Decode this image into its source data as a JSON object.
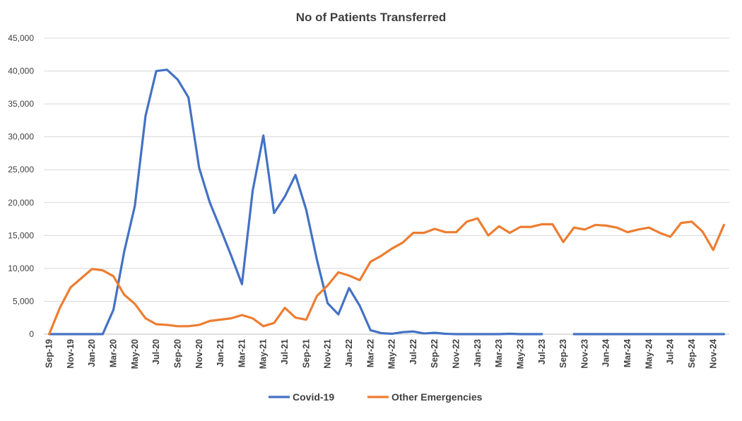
{
  "chart_data": {
    "type": "line",
    "title": "No of Patients Transferred",
    "xlabel": "",
    "ylabel": "",
    "ylim": [
      0,
      45000
    ],
    "y_ticks": [
      0,
      5000,
      10000,
      15000,
      20000,
      25000,
      30000,
      35000,
      40000,
      45000
    ],
    "y_tick_labels": [
      "0",
      "5,000",
      "10,000",
      "15,000",
      "20,000",
      "25,000",
      "30,000",
      "35,000",
      "40,000",
      "45,000"
    ],
    "categories": [
      "Sep-19",
      "Oct-19",
      "Nov-19",
      "Dec-19",
      "Jan-20",
      "Feb-20",
      "Mar-20",
      "Apr-20",
      "May-20",
      "Jun-20",
      "Jul-20",
      "Aug-20",
      "Sep-20",
      "Oct-20",
      "Nov-20",
      "Dec-20",
      "Jan-21",
      "Feb-21",
      "Mar-21",
      "Apr-21",
      "May-21",
      "Jun-21",
      "Jul-21",
      "Aug-21",
      "Sep-21",
      "Oct-21",
      "Nov-21",
      "Dec-21",
      "Jan-22",
      "Feb-22",
      "Mar-22",
      "Apr-22",
      "May-22",
      "Jun-22",
      "Jul-22",
      "Aug-22",
      "Sep-22",
      "Oct-22",
      "Nov-22",
      "Dec-22",
      "Jan-23",
      "Feb-23",
      "Mar-23",
      "Apr-23",
      "May-23",
      "Jun-23",
      "Jul-23",
      "Aug-23",
      "Sep-23",
      "Oct-23",
      "Nov-23",
      "Dec-23",
      "Jan-24",
      "Feb-24",
      "Mar-24",
      "Apr-24",
      "May-24",
      "Jun-24",
      "Jul-24",
      "Aug-24",
      "Sep-24",
      "Oct-24",
      "Nov-24",
      "Dec-24"
    ],
    "x_tick_labels": [
      "Sep-19",
      "Nov-19",
      "Jan-20",
      "Mar-20",
      "May-20",
      "Jul-20",
      "Sep-20",
      "Nov-20",
      "Jan-21",
      "Mar-21",
      "May-21",
      "Jul-21",
      "Sep-21",
      "Nov-21",
      "Jan-22",
      "Mar-22",
      "May-22",
      "Jul-22",
      "Sep-22",
      "Nov-22",
      "Jan-23",
      "Mar-23",
      "May-23",
      "Jul-23",
      "Sep-23",
      "Nov-23",
      "Jan-24",
      "Mar-24",
      "May-24",
      "Jul-24",
      "Sep-24",
      "Nov-24"
    ],
    "grid": "horizontal",
    "legend_position": "bottom",
    "series": [
      {
        "name": "Covid-19",
        "color": "#4472c4",
        "values": [
          0,
          0,
          0,
          0,
          0,
          0,
          3700,
          12500,
          19500,
          33200,
          40000,
          40200,
          38700,
          36000,
          25300,
          20000,
          16000,
          11900,
          7600,
          21800,
          30200,
          18400,
          20900,
          24200,
          18900,
          11300,
          4700,
          3000,
          7000,
          4300,
          600,
          150,
          50,
          300,
          400,
          100,
          200,
          50,
          0,
          0,
          0,
          0,
          0,
          50,
          0,
          0,
          0,
          null,
          null,
          0,
          0,
          0,
          0,
          0,
          0,
          0,
          0,
          0,
          0,
          0,
          0,
          0,
          0,
          0
        ]
      },
      {
        "name": "Other Emergencies",
        "color": "#ed7d31",
        "values": [
          0,
          4000,
          7100,
          8500,
          9900,
          9700,
          8800,
          6000,
          4600,
          2400,
          1500,
          1400,
          1200,
          1200,
          1400,
          2000,
          2200,
          2400,
          2900,
          2400,
          1200,
          1700,
          4000,
          2500,
          2200,
          5800,
          7400,
          9400,
          8900,
          8200,
          11000,
          11900,
          13000,
          13900,
          15400,
          15400,
          16000,
          15500,
          15500,
          17100,
          17600,
          15000,
          16400,
          15400,
          16300,
          16300,
          16700,
          16700,
          14000,
          16200,
          15900,
          16600,
          16500,
          16200,
          15500,
          15900,
          16200,
          15400,
          14800,
          16900,
          17100,
          15600,
          12800,
          16600
        ]
      }
    ]
  }
}
